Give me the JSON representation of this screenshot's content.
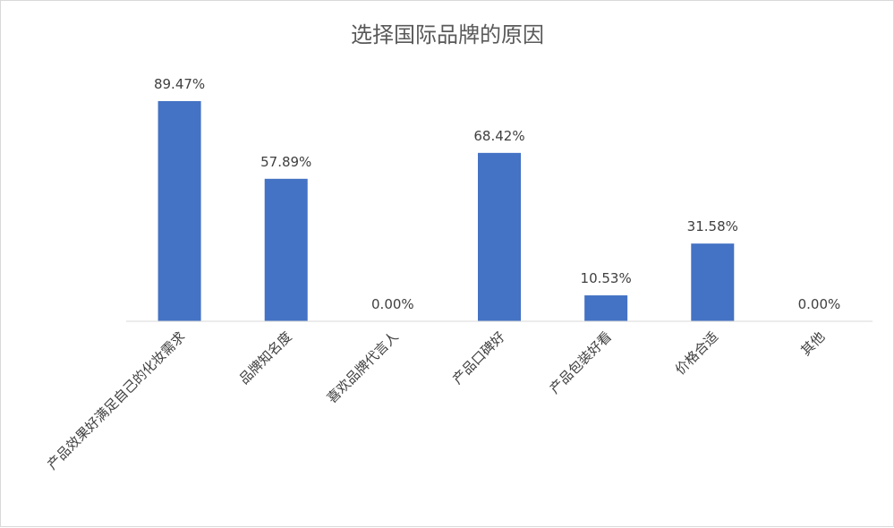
{
  "chart_data": {
    "type": "bar",
    "title": "选择国际品牌的原因",
    "categories": [
      "产品效果好满足自己的化妆需求",
      "品牌知名度",
      "喜欢品牌代言人",
      "产品口碑好",
      "产品包装好看",
      "价格合适",
      "其他"
    ],
    "values": [
      89.47,
      57.89,
      0.0,
      68.42,
      10.53,
      31.58,
      0.0
    ],
    "data_labels": [
      "89.47%",
      "57.89%",
      "0.00%",
      "68.42%",
      "10.53%",
      "31.58%",
      "0.00%"
    ],
    "value_unit": "%",
    "ylim": [
      0,
      100
    ],
    "xlabel": "",
    "ylabel": "",
    "grid": false,
    "legend": "none",
    "bar_color": "#4472c4"
  }
}
